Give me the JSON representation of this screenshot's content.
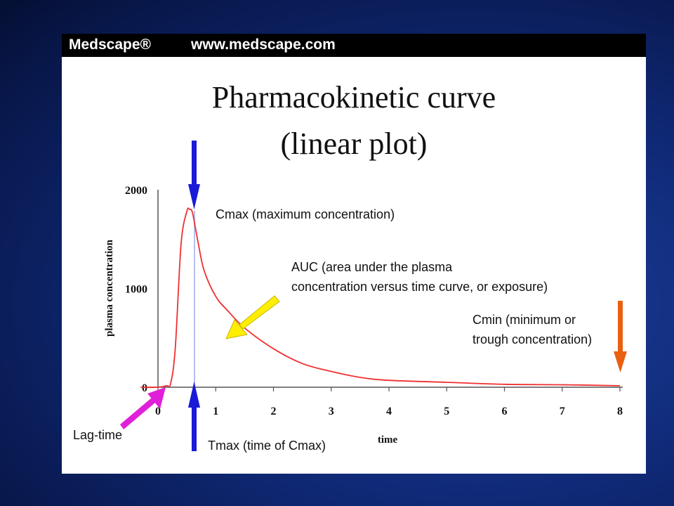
{
  "banner": {
    "brand": "Medscape®",
    "url": "www.medscape.com"
  },
  "title_line1": "Pharmacokinetic curve",
  "title_line2": "(linear plot)",
  "colors": {
    "curve": "#f03030",
    "cmax_arrow": "#1a1ad8",
    "auc_arrow": "#ffee00",
    "cmin_arrow": "#e86010",
    "lag_arrow": "#e020d8",
    "tmax_line": "#b8c0f0"
  },
  "annotations": {
    "cmax": "Cmax (maximum concentration)",
    "auc_line1": "AUC (area under the plasma",
    "auc_line2": "concentration versus time curve, or exposure)",
    "cmin_line1": "Cmin (minimum or",
    "cmin_line2": "trough concentration)",
    "lag": "Lag-time",
    "tmax": "Tmax (time of Cmax)"
  },
  "chart_data": {
    "type": "line",
    "xlabel": "time",
    "ylabel": "plasma concentration",
    "xlim": [
      0,
      8
    ],
    "ylim": [
      0,
      2000
    ],
    "x_ticks": [
      "0",
      "1",
      "2",
      "3",
      "4",
      "5",
      "6",
      "7",
      "8"
    ],
    "y_ticks": [
      "0",
      "1000",
      "2000"
    ],
    "grid": false,
    "series": [
      {
        "x": [
          -0.3,
          0.0,
          0.15,
          0.22,
          0.3,
          0.4,
          0.5,
          0.55,
          0.6,
          0.7,
          0.8,
          1.0,
          1.2,
          1.5,
          2.0,
          2.5,
          3.0,
          3.5,
          4.0,
          5.0,
          6.0,
          7.0,
          8.0
        ],
        "y": [
          0,
          0,
          15,
          40,
          400,
          1450,
          1780,
          1800,
          1760,
          1450,
          1180,
          920,
          780,
          600,
          390,
          240,
          160,
          100,
          70,
          50,
          30,
          25,
          15
        ]
      }
    ]
  }
}
